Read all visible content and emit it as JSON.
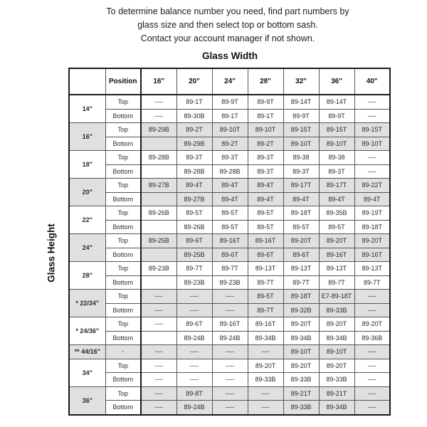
{
  "intro": {
    "line1": "To determine balance number you need, find part numbers by",
    "line2": "glass size and then select top or bottom sash.",
    "line3": "Contact your account manager if not shown."
  },
  "axis_titles": {
    "width": "Glass Width",
    "height": "Glass Height"
  },
  "colors": {
    "shaded_row": "#e0e0e0",
    "border": "#1a1a1a",
    "text": "#2a2a2a"
  },
  "table": {
    "corner_label": "",
    "position_header": "Position",
    "width_headers": [
      "16\"",
      "20\"",
      "24\"",
      "28\"",
      "32\"",
      "36\"",
      "40\""
    ],
    "groups": [
      {
        "height": "14\"",
        "shaded": false,
        "rows": [
          {
            "position": "Top",
            "position_shaded": false,
            "cells": [
              "----",
              "89-1T",
              "89-9T",
              "89-9T",
              "89-14T",
              "89-14T",
              "----"
            ]
          },
          {
            "position": "Bottom",
            "position_shaded": false,
            "cells": [
              "----",
              "89-30B",
              "89-1T",
              "89-1T",
              "89-9T",
              "89-9T",
              "----"
            ]
          }
        ]
      },
      {
        "height": "16\"",
        "shaded": true,
        "rows": [
          {
            "position": "Top",
            "position_shaded": false,
            "cells": [
              "89-29B",
              "89-2T",
              "89-10T",
              "89-10T",
              "89-15T",
              "89-15T",
              "89-15T"
            ]
          },
          {
            "position": "Bottom",
            "position_shaded": false,
            "cells": [
              "",
              "89-29B",
              "89-2T",
              "89-2T",
              "89-10T",
              "89-10T",
              "89-10T"
            ]
          }
        ]
      },
      {
        "height": "18\"",
        "shaded": false,
        "rows": [
          {
            "position": "Top",
            "position_shaded": false,
            "cells": [
              "89-28B",
              "89-3T",
              "89-3T",
              "89-3T",
              "89-38",
              "89-38",
              "----"
            ]
          },
          {
            "position": "Bottom",
            "position_shaded": false,
            "cells": [
              "",
              "89-28B",
              "89-28B",
              "89-3T",
              "89-3T",
              "89-3T",
              "----"
            ]
          }
        ]
      },
      {
        "height": "20\"",
        "shaded": true,
        "rows": [
          {
            "position": "Top",
            "position_shaded": false,
            "cells": [
              "89-27B",
              "89-4T",
              "89-4T",
              "89-4T",
              "89-17T",
              "89-17T",
              "89-22T"
            ]
          },
          {
            "position": "Bottom",
            "position_shaded": false,
            "cells": [
              "",
              "89-27B",
              "89-4T",
              "89-4T",
              "89-4T",
              "89-4T",
              "89-4T"
            ]
          }
        ]
      },
      {
        "height": "22\"",
        "shaded": false,
        "rows": [
          {
            "position": "Top",
            "position_shaded": false,
            "cells": [
              "89-26B",
              "89-5T",
              "89-5T",
              "89-5T",
              "89-18T",
              "89-35B",
              "89-19T"
            ]
          },
          {
            "position": "Bottom",
            "position_shaded": false,
            "cells": [
              "",
              "89-26B",
              "89-5T",
              "89-5T",
              "89-5T",
              "89-5T",
              "89-18T"
            ]
          }
        ]
      },
      {
        "height": "24\"",
        "shaded": true,
        "rows": [
          {
            "position": "Top",
            "position_shaded": false,
            "cells": [
              "89-25B",
              "89-6T",
              "89-16T",
              "89-16T",
              "89-20T",
              "89-20T",
              "89-20T"
            ]
          },
          {
            "position": "Bottom",
            "position_shaded": false,
            "cells": [
              "",
              "89-25B",
              "89-6T",
              "89-6T",
              "89-6T",
              "89-16T",
              "89-16T"
            ]
          }
        ]
      },
      {
        "height": "28\"",
        "shaded": false,
        "rows": [
          {
            "position": "Top",
            "position_shaded": false,
            "cells": [
              "89-23B",
              "89-7T",
              "89-7T",
              "89-13T",
              "89-13T",
              "89-13T",
              "89-13T"
            ]
          },
          {
            "position": "Bottom",
            "position_shaded": false,
            "cells": [
              "",
              "89-23B",
              "89-23B",
              "89-7T",
              "89-7T",
              "89-7T",
              "89-7T"
            ]
          }
        ]
      },
      {
        "height": "* 22/34\"",
        "shaded": true,
        "rows": [
          {
            "position": "Top",
            "position_shaded": false,
            "cells": [
              "----",
              "----",
              "----",
              "89-5T",
              "89-18T",
              "E7-89-18T",
              "----"
            ]
          },
          {
            "position": "Bottom",
            "position_shaded": false,
            "cells": [
              "----",
              "----",
              "----",
              "89-7T",
              "89-32B",
              "89-33B",
              "----"
            ]
          }
        ]
      },
      {
        "height": "* 24/36\"",
        "shaded": false,
        "rows": [
          {
            "position": "Top",
            "position_shaded": false,
            "cells": [
              "----",
              "89-6T",
              "89-16T",
              "89-16T",
              "89-20T",
              "89-20T",
              "89-20T"
            ]
          },
          {
            "position": "Bottom",
            "position_shaded": false,
            "cells": [
              "",
              "89-24B",
              "89-24B",
              "89-34B",
              "89-34B",
              "89-34B",
              "89-36B"
            ]
          }
        ]
      },
      {
        "height": "** 44/16\"",
        "shaded": true,
        "rows": [
          {
            "position": "-",
            "position_shaded": true,
            "cells": [
              "----",
              "----",
              "----",
              "----",
              "89-10T",
              "89-10T",
              "----"
            ]
          }
        ]
      },
      {
        "height": "34\"",
        "shaded": false,
        "rows": [
          {
            "position": "Top",
            "position_shaded": false,
            "cells": [
              "----",
              "----",
              "----",
              "89-20T",
              "89-20T",
              "89-20T",
              "----"
            ]
          },
          {
            "position": "Bottom",
            "position_shaded": false,
            "cells": [
              "----",
              "----",
              "----",
              "89-33B",
              "89-33B",
              "89-33B",
              "----"
            ]
          }
        ]
      },
      {
        "height": "36\"",
        "shaded": true,
        "rows": [
          {
            "position": "Top",
            "position_shaded": false,
            "cells": [
              "----",
              "89-8T",
              "----",
              "----",
              "89-21T",
              "89-21T",
              "----"
            ]
          },
          {
            "position": "Bottom",
            "position_shaded": false,
            "cells": [
              "----",
              "89-24B",
              "----",
              "----",
              "89-33B",
              "89-34B",
              "----"
            ]
          }
        ]
      }
    ]
  }
}
